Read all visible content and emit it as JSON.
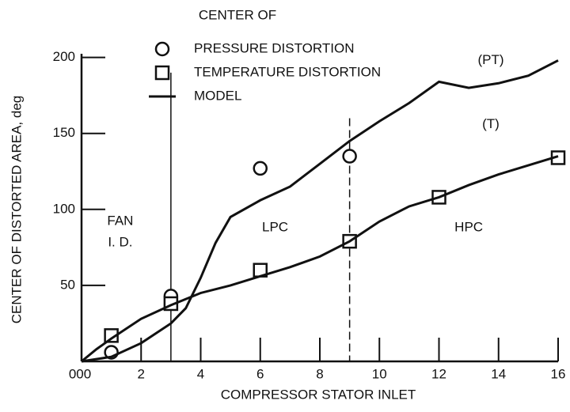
{
  "chart_data": {
    "type": "line",
    "legend_title": "CENTER OF",
    "model_legend": "MODEL",
    "x_label": "COMPRESSOR STATOR INLET",
    "y_label": "CENTER OF DISTORTED AREA, deg",
    "xlim": [
      0,
      16
    ],
    "ylim": [
      0,
      205
    ],
    "xticks": [
      {
        "value": 0,
        "label": "000"
      },
      2,
      4,
      6,
      8,
      10,
      12,
      14,
      16
    ],
    "yticks": [
      50,
      100,
      150,
      200
    ],
    "color": "#111111",
    "series": [
      {
        "name": "PRESSURE DISTORTION",
        "marker": "circle",
        "x": [
          1,
          3,
          6,
          9
        ],
        "values": [
          6,
          43,
          127,
          135
        ]
      },
      {
        "name": "TEMPERATURE DISTORTION",
        "marker": "square",
        "x": [
          1,
          3,
          6,
          9,
          12,
          16
        ],
        "values": [
          17,
          38,
          60,
          79,
          108,
          134
        ]
      },
      {
        "name": "(PT)",
        "marker": "none",
        "x": [
          0,
          1,
          2,
          3,
          3.5,
          4,
          4.5,
          5,
          6,
          7,
          8,
          9,
          10,
          11,
          12,
          13,
          14,
          15,
          16
        ],
        "values": [
          0,
          3,
          12,
          25,
          35,
          55,
          78,
          95,
          106,
          115,
          130,
          145,
          158,
          170,
          184,
          180,
          183,
          188,
          198
        ]
      },
      {
        "name": "(T)",
        "marker": "none",
        "x": [
          0,
          0.5,
          1,
          2,
          3,
          4,
          5,
          6,
          7,
          8,
          9,
          10,
          11,
          12,
          13,
          14,
          15,
          16
        ],
        "values": [
          0,
          8,
          15,
          28,
          37,
          45,
          50,
          56,
          62,
          69,
          79,
          92,
          102,
          108,
          116,
          123,
          129,
          135
        ]
      }
    ],
    "annotations": [
      {
        "text": "FAN",
        "x": 1.3,
        "y": 92
      },
      {
        "text": "I. D.",
        "x": 1.3,
        "y": 78
      },
      {
        "text": "LPC",
        "x": 6.5,
        "y": 88
      },
      {
        "text": "HPC",
        "x": 13,
        "y": 88
      }
    ],
    "vlines": [
      {
        "x": 3,
        "top": 190,
        "style": "solid"
      },
      {
        "x": 9,
        "top": 160,
        "style": "dashed"
      }
    ]
  }
}
